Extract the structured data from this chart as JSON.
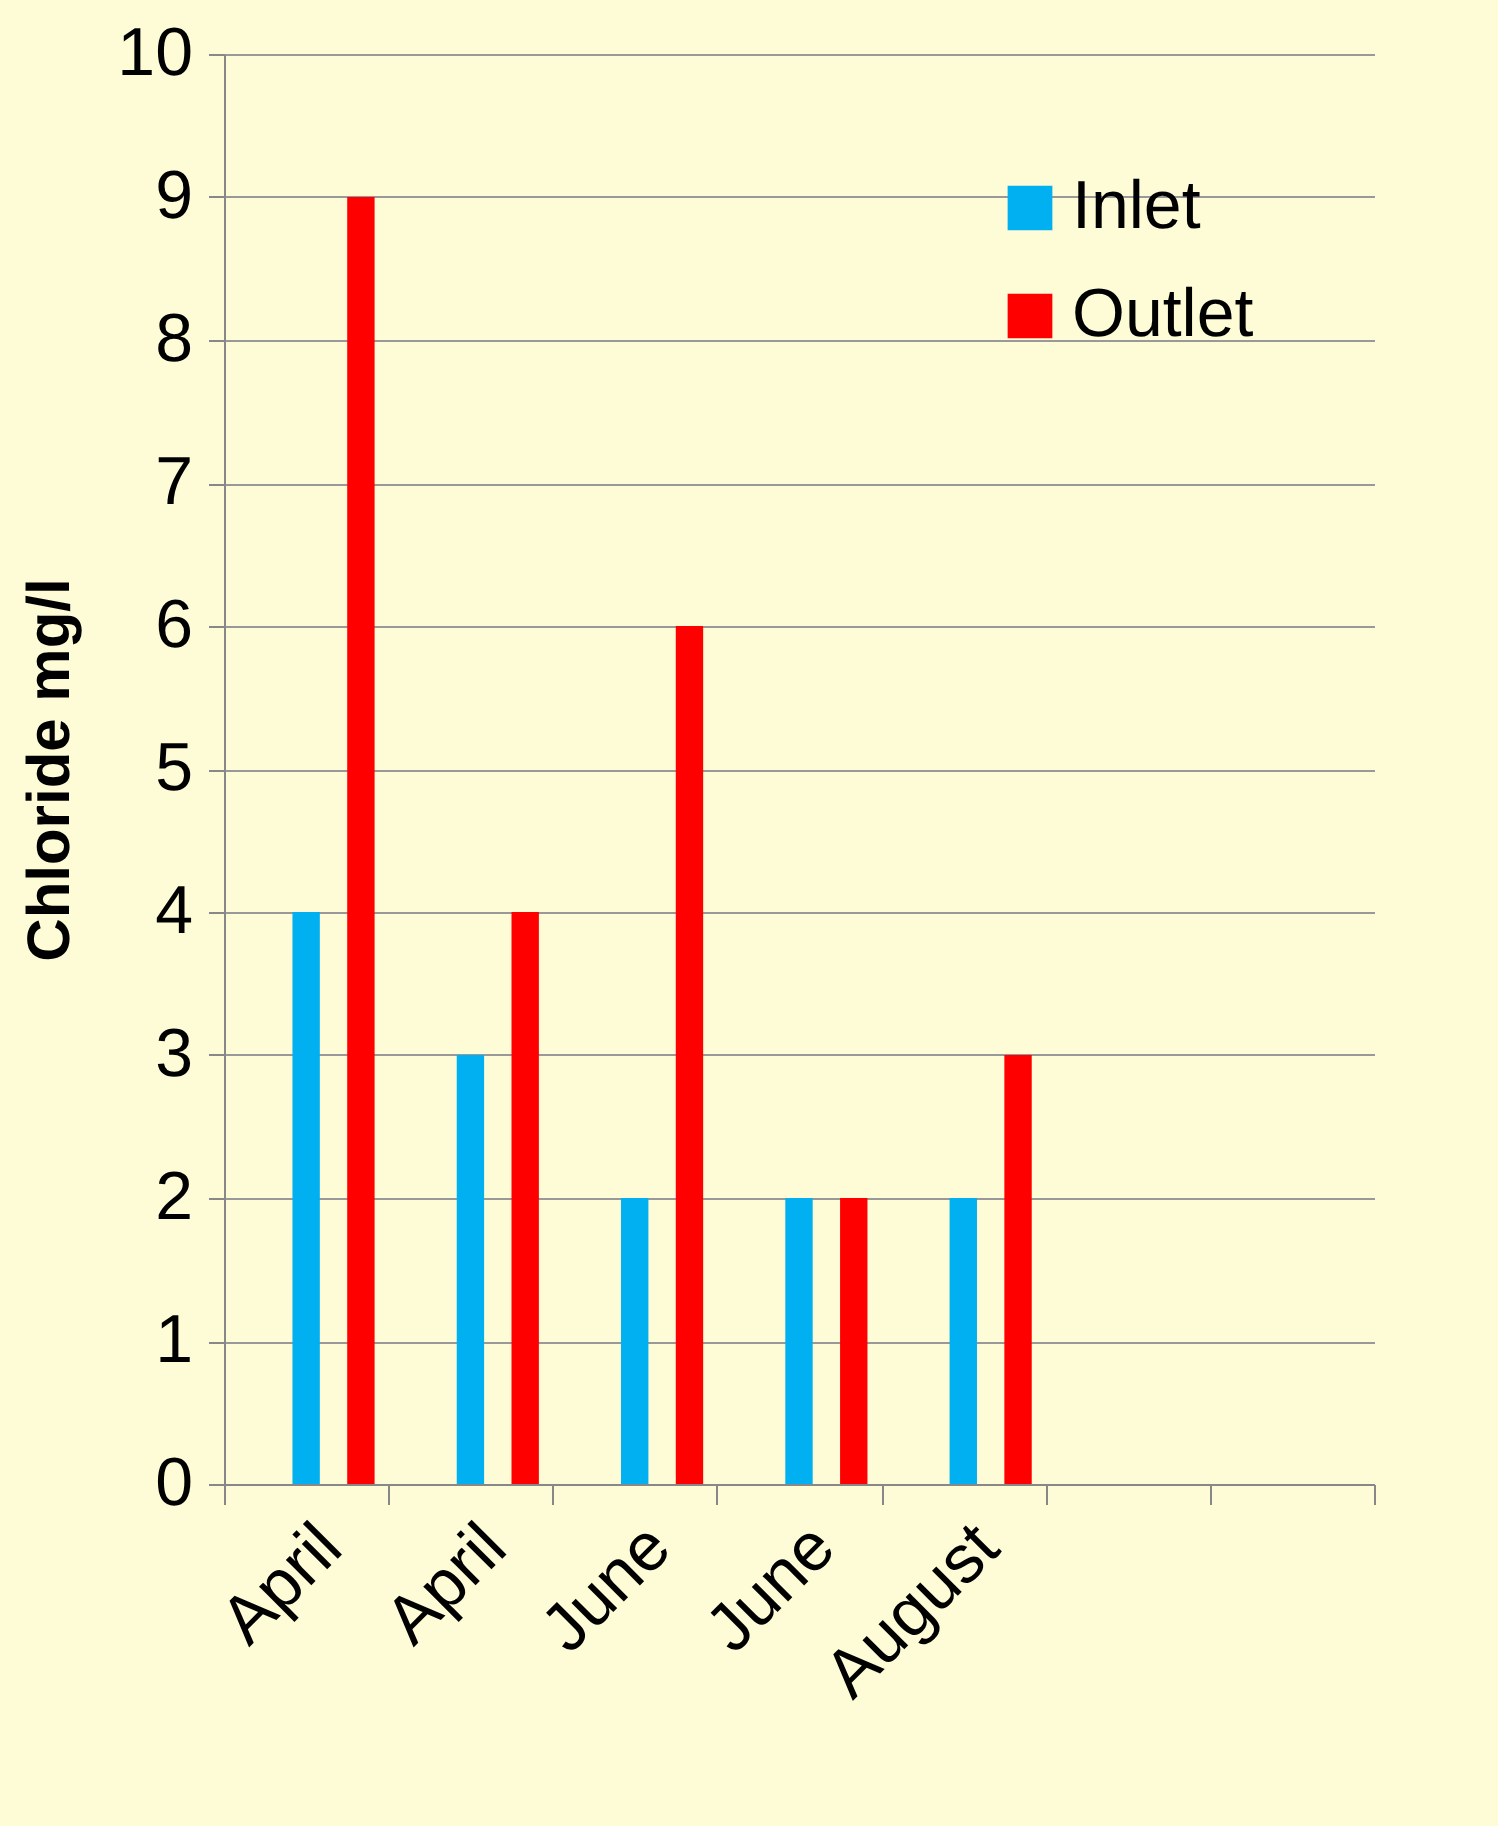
{
  "chart_data": {
    "type": "bar",
    "ylabel": "Chloride mg/l",
    "categories": [
      "April",
      "April",
      "June",
      "June",
      "August",
      null,
      null
    ],
    "series": [
      {
        "name": "Inlet",
        "color": "#00b0f0",
        "values": [
          4,
          3,
          2,
          2,
          2,
          null,
          null
        ]
      },
      {
        "name": "Outlet",
        "color": "#ff0000",
        "values": [
          9,
          4,
          6,
          2,
          3,
          null,
          null
        ]
      }
    ],
    "ylim": [
      0,
      10
    ],
    "yticks": [
      0,
      1,
      2,
      3,
      4,
      5,
      6,
      7,
      8,
      9,
      10
    ],
    "grid": "y",
    "legend": "top right"
  }
}
